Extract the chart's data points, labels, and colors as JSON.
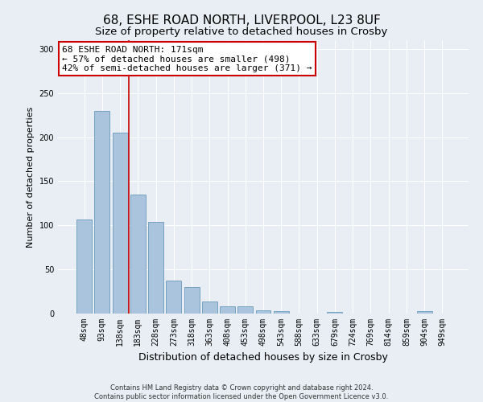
{
  "title": "68, ESHE ROAD NORTH, LIVERPOOL, L23 8UF",
  "subtitle": "Size of property relative to detached houses in Crosby",
  "xlabel": "Distribution of detached houses by size in Crosby",
  "ylabel": "Number of detached properties",
  "categories": [
    "48sqm",
    "93sqm",
    "138sqm",
    "183sqm",
    "228sqm",
    "273sqm",
    "318sqm",
    "363sqm",
    "408sqm",
    "453sqm",
    "498sqm",
    "543sqm",
    "588sqm",
    "633sqm",
    "679sqm",
    "724sqm",
    "769sqm",
    "814sqm",
    "859sqm",
    "904sqm",
    "949sqm"
  ],
  "values": [
    107,
    230,
    205,
    135,
    104,
    37,
    30,
    14,
    8,
    8,
    4,
    3,
    0,
    0,
    2,
    0,
    0,
    0,
    0,
    3,
    0
  ],
  "bar_color": "#aac4de",
  "bar_edge_color": "#6899bb",
  "vline_color": "#cc0000",
  "vline_x": 2.5,
  "annotation_text": "68 ESHE ROAD NORTH: 171sqm\n← 57% of detached houses are smaller (498)\n42% of semi-detached houses are larger (371) →",
  "annotation_box_facecolor": "#ffffff",
  "annotation_box_edgecolor": "#cc0000",
  "ylim": [
    0,
    310
  ],
  "yticks": [
    0,
    50,
    100,
    150,
    200,
    250,
    300
  ],
  "background_color": "#e8eef4",
  "grid_color": "#ffffff",
  "footer_text": "Contains HM Land Registry data © Crown copyright and database right 2024.\nContains public sector information licensed under the Open Government Licence v3.0.",
  "title_fontsize": 11,
  "subtitle_fontsize": 9.5,
  "xlabel_fontsize": 9,
  "ylabel_fontsize": 8,
  "tick_fontsize": 7,
  "annotation_fontsize": 8,
  "footer_fontsize": 6
}
